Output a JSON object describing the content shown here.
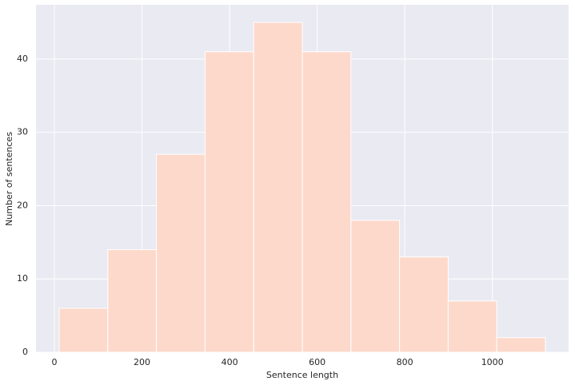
{
  "chart_data": {
    "type": "histogram",
    "x_label": "Sentence length",
    "y_label": "Number of sentences",
    "bins": [
      11,
      122,
      233,
      344,
      455,
      566,
      677,
      788,
      899,
      1010,
      1121
    ],
    "values": [
      6,
      14,
      27,
      41,
      45,
      41,
      18,
      13,
      7,
      2
    ],
    "color": "#fdd9cc",
    "xlim": [
      -42,
      1174
    ],
    "ylim": [
      0,
      47.4
    ],
    "xticks": [
      0,
      200,
      400,
      600,
      800,
      1000
    ],
    "yticks": [
      0,
      10,
      20,
      30,
      40
    ],
    "grid": true
  }
}
